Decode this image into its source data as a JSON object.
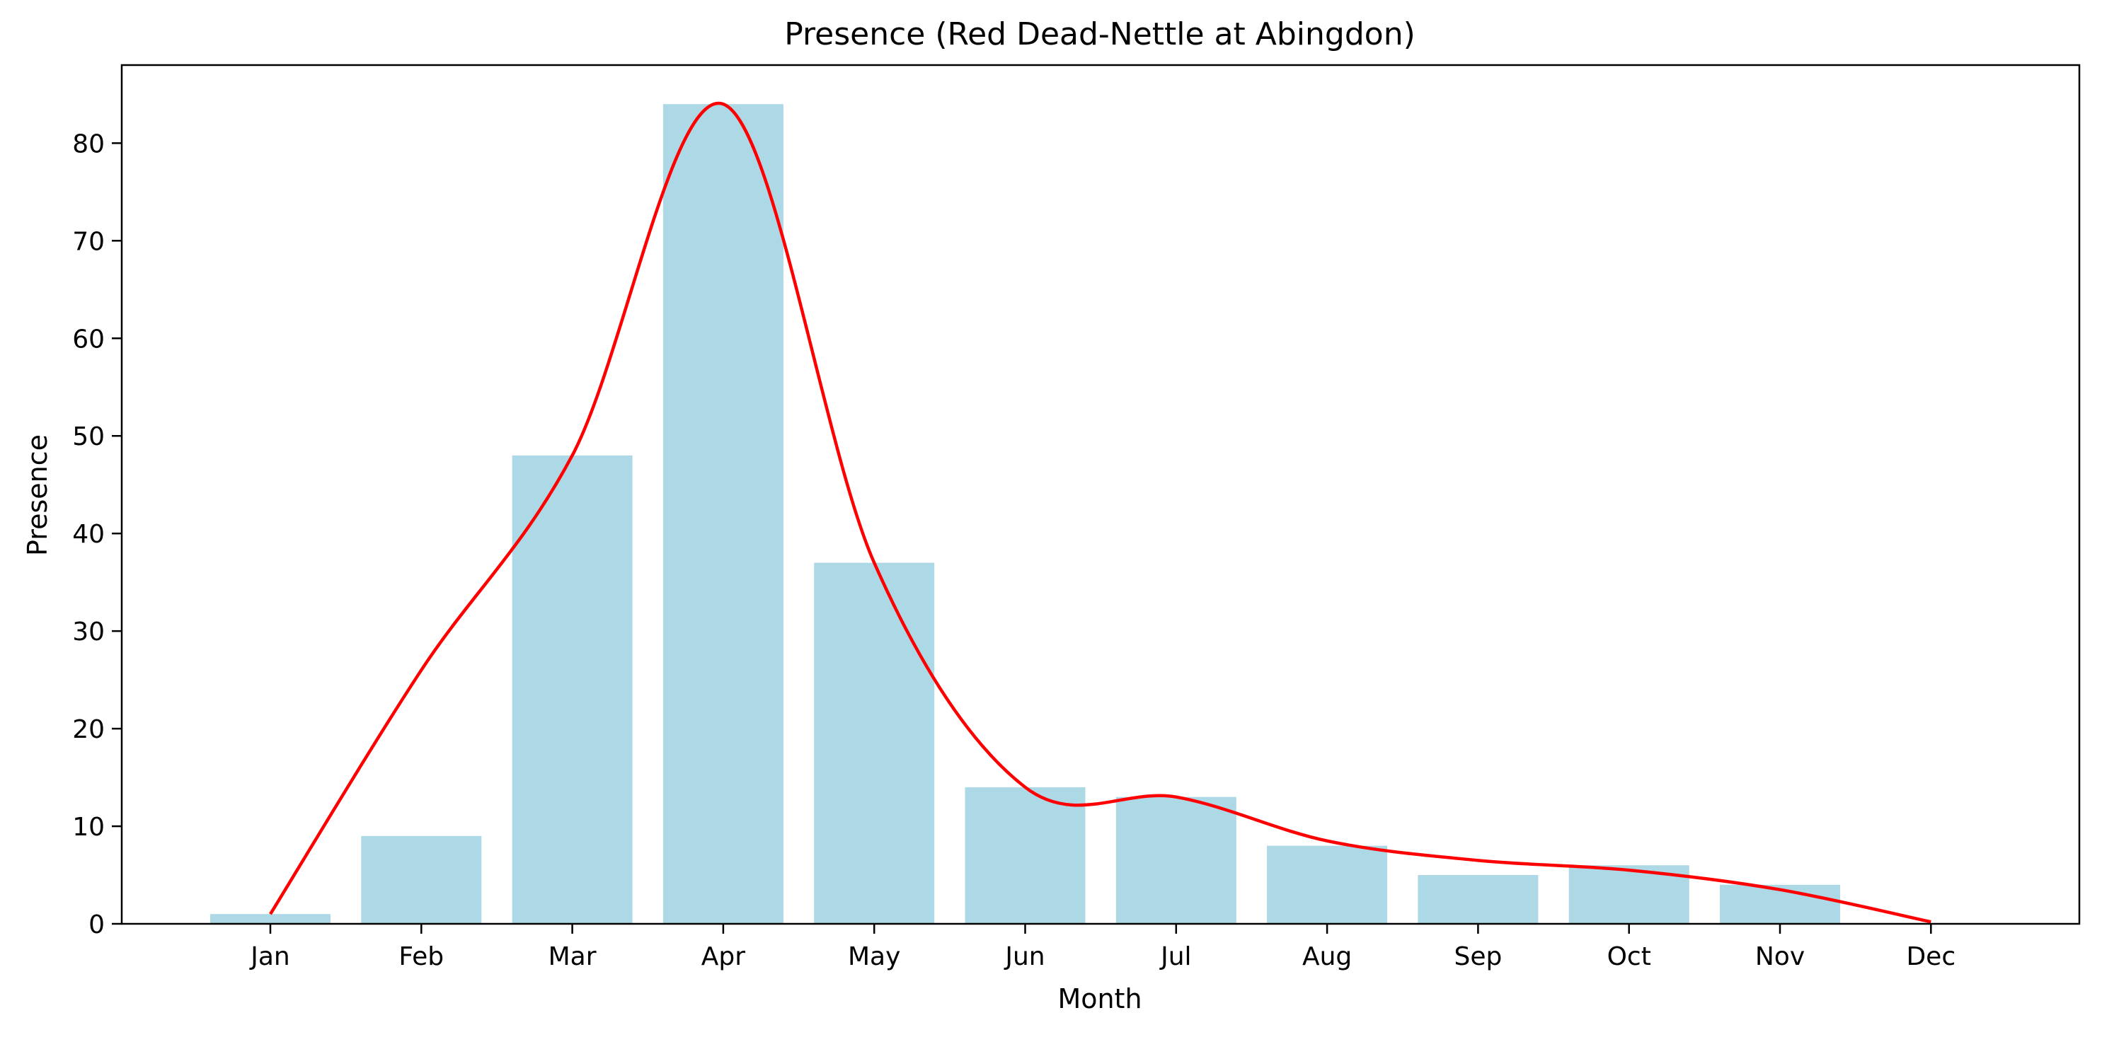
{
  "chart_data": {
    "type": "bar",
    "title": "Presence (Red Dead-Nettle at Abingdon)",
    "xlabel": "Month",
    "ylabel": "Presence",
    "categories": [
      "Jan",
      "Feb",
      "Mar",
      "Apr",
      "May",
      "Jun",
      "Jul",
      "Aug",
      "Sep",
      "Oct",
      "Nov",
      "Dec"
    ],
    "values": [
      1,
      9,
      48,
      84,
      37,
      14,
      13,
      8,
      5,
      6,
      4,
      0
    ],
    "ylim": [
      0,
      88
    ],
    "yticks": [
      0,
      10,
      20,
      30,
      40,
      50,
      60,
      70,
      80
    ],
    "grid": false,
    "legend": "none",
    "overlay_line": {
      "type": "smoothed line",
      "points": [
        {
          "x": "Jan",
          "y": 1
        },
        {
          "x": "Feb",
          "y": 26
        },
        {
          "x": "Mar",
          "y": 48
        },
        {
          "x": "Apr",
          "y": 84
        },
        {
          "x": "May",
          "y": 37
        },
        {
          "x": "Jun",
          "y": 14
        },
        {
          "x": "Jul",
          "y": 13
        },
        {
          "x": "Aug",
          "y": 8.5
        },
        {
          "x": "Sep",
          "y": 6.5
        },
        {
          "x": "Oct",
          "y": 5.5
        },
        {
          "x": "Nov",
          "y": 3.5
        },
        {
          "x": "Dec",
          "y": 0.2
        }
      ]
    },
    "colors": {
      "bar": "#add8e6",
      "line": "#ff0000",
      "axis": "#000000"
    }
  }
}
